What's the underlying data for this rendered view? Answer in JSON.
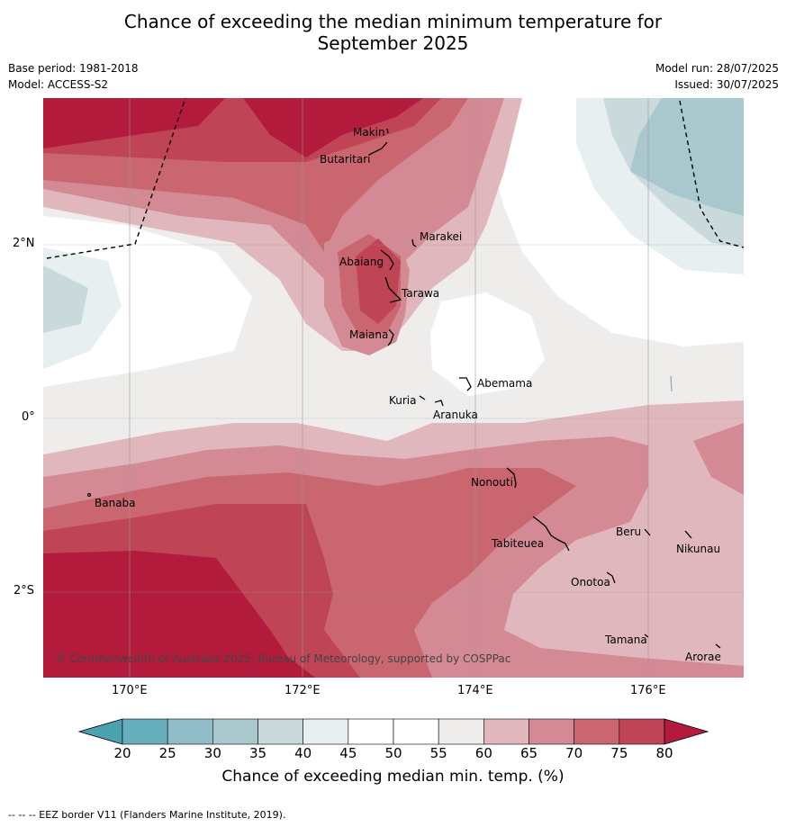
{
  "title_line1": "Chance of exceeding the median minimum temperature for",
  "title_line2": "September 2025",
  "base_period": "Base period: 1981-2018",
  "model": "Model: ACCESS-S2",
  "model_run": "Model run: 28/07/2025",
  "issued": "Issued: 30/07/2025",
  "copyright": "© Commonwealth of Australia 2025, Bureau of Meteorology, supported by COSPPac",
  "footer": "-- -- -- EEZ border V11 (Flanders Marine Institute, 2019).",
  "colorbar": {
    "label": "Chance of exceeding median min. temp. (%)",
    "ticks": [
      "20",
      "25",
      "30",
      "35",
      "40",
      "45",
      "50",
      "55",
      "60",
      "65",
      "70",
      "75",
      "80"
    ],
    "colors": [
      "#68afbd",
      "#8fbcc6",
      "#a9c8cd",
      "#c9d9dc",
      "#e8eff1",
      "#ffffff",
      "#ffffff",
      "#eeedec",
      "#e0b7bd",
      "#d48a94",
      "#c9666f",
      "#bf4556"
    ],
    "under_color": "#4aa1b0",
    "over_color": "#b31b3c"
  },
  "axes": {
    "lat_labels": [
      "2°N",
      "0°",
      "2°S"
    ],
    "lon_labels": [
      "170°E",
      "172°E",
      "174°E",
      "176°E"
    ]
  },
  "places": [
    {
      "name": "Makin"
    },
    {
      "name": "Butaritari"
    },
    {
      "name": "Marakei"
    },
    {
      "name": "Abaiang"
    },
    {
      "name": "Tarawa"
    },
    {
      "name": "Maiana"
    },
    {
      "name": "Abemama"
    },
    {
      "name": "Kuria"
    },
    {
      "name": "Aranuka"
    },
    {
      "name": "Nonouti"
    },
    {
      "name": "Banaba"
    },
    {
      "name": "Beru"
    },
    {
      "name": "Nikunau"
    },
    {
      "name": "Tabiteuea"
    },
    {
      "name": "Onotoa"
    },
    {
      "name": "Tamana"
    },
    {
      "name": "Arorae"
    }
  ]
}
